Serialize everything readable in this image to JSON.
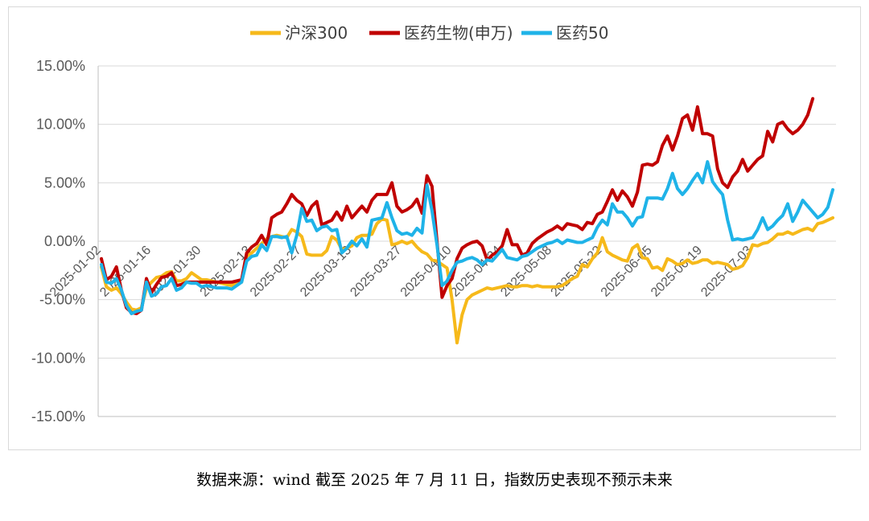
{
  "caption": "数据来源：wind    截至 2025 年 7 月 11 日，指数历史表现不预示未来",
  "chart_data": {
    "type": "line",
    "ylim": [
      -15,
      15
    ],
    "yticks": [
      15,
      10,
      5,
      0,
      -5,
      -10,
      -15
    ],
    "ytick_labels": [
      "15.00%",
      "10.00%",
      "5.00%",
      "0.00%",
      "-5.00%",
      "-10.00%",
      "-15.00%"
    ],
    "xtick_labels": [
      "2025-01-02",
      "2025-01-16",
      "2025-01-30",
      "2025-02-13",
      "2025-02-27",
      "2025-03-13",
      "2025-03-27",
      "2025-04-10",
      "2025-04-24",
      "2025-05-08",
      "2025-05-22",
      "2025-06-05",
      "2025-06-19",
      "2025-07-03"
    ],
    "xtick_index": [
      0,
      10,
      20,
      30,
      40,
      50,
      60,
      70,
      80,
      90,
      100,
      110,
      120,
      130
    ],
    "legend_position": "top",
    "grid": "horizontal",
    "series": [
      {
        "name": "沪深300",
        "color": "#F6B91A",
        "values": [
          -2.2,
          -3.9,
          -4.2,
          -4.0,
          -4.5,
          -5.2,
          -5.8,
          -5.9,
          -5.7,
          -4.0,
          -3.5,
          -3.1,
          -3.0,
          -2.7,
          -2.6,
          -3.4,
          -3.4,
          -3.2,
          -2.7,
          -3.0,
          -3.3,
          -3.3,
          -3.4,
          -3.5,
          -3.6,
          -3.7,
          -3.8,
          -3.6,
          -3.5,
          -1.3,
          -1.0,
          -0.6,
          -0.2,
          0.2,
          0.4,
          0.5,
          0.4,
          0.3,
          1.0,
          0.8,
          0.4,
          -1.1,
          -1.2,
          -1.2,
          -1.2,
          -0.8,
          0.4,
          0.1,
          -0.7,
          -0.6,
          -0.4,
          0.3,
          0.5,
          0.5,
          0.6,
          1.5,
          1.9,
          1.8,
          -0.3,
          -0.2,
          0.0,
          -0.2,
          0.0,
          -0.5,
          -0.9,
          -1.1,
          -1.6,
          -1.7,
          -2.0,
          -2.3,
          -5.0,
          -8.7,
          -6.3,
          -5.0,
          -4.6,
          -4.4,
          -4.2,
          -4.0,
          -4.1,
          -4.0,
          -3.9,
          -3.8,
          -3.9,
          -3.9,
          -3.8,
          -3.8,
          -3.9,
          -3.8,
          -3.9,
          -3.9,
          -3.9,
          -3.9,
          -3.8,
          -3.5,
          -3.2,
          -3.0,
          -2.0,
          -2.2,
          -1.5,
          -1.0,
          0.3,
          -0.9,
          -1.2,
          -1.4,
          -1.6,
          -1.7,
          -0.6,
          -0.3,
          -1.4,
          -1.5,
          -2.3,
          -2.2,
          -2.5,
          -1.5,
          -1.7,
          -2.0,
          -1.9,
          -1.6,
          -1.9,
          -1.8,
          -1.6,
          -1.6,
          -1.9,
          -1.8,
          -1.9,
          -2.0,
          -2.4,
          -2.3,
          -2.1,
          -1.4,
          -0.3,
          -0.4,
          -0.2,
          -0.1,
          0.2,
          0.6,
          0.6,
          0.8,
          0.6,
          0.8,
          1.0,
          1.1,
          0.9,
          1.5,
          1.6,
          1.8,
          2.0
        ]
      },
      {
        "name": "医药生物(申万)",
        "color": "#C00000",
        "values": [
          -1.5,
          -3.3,
          -3.0,
          -2.2,
          -4.2,
          -5.7,
          -6.1,
          -6.2,
          -5.9,
          -3.2,
          -4.4,
          -3.7,
          -3.1,
          -3.0,
          -2.7,
          -3.8,
          -3.7,
          -3.5,
          -3.5,
          -3.5,
          -3.5,
          -3.5,
          -3.5,
          -3.5,
          -3.5,
          -3.5,
          -3.5,
          -3.4,
          -3.3,
          -1.0,
          -0.5,
          -0.2,
          0.5,
          -0.3,
          2.0,
          2.3,
          2.5,
          3.2,
          4.0,
          3.5,
          3.2,
          2.2,
          3.0,
          3.4,
          1.4,
          1.6,
          1.8,
          2.5,
          1.8,
          3.0,
          2.0,
          2.5,
          3.0,
          2.5,
          3.5,
          4.0,
          4.0,
          4.0,
          5.0,
          3.0,
          2.5,
          2.7,
          3.0,
          3.6,
          2.4,
          5.6,
          4.7,
          0.0,
          -4.8,
          -3.8,
          -3.2,
          -1.5,
          -0.6,
          -0.3,
          -0.1,
          0.0,
          -0.4,
          -1.6,
          -1.2,
          -0.9,
          -0.4,
          1.0,
          -0.3,
          -0.3,
          -1.2,
          -1.0,
          -0.2,
          0.2,
          0.5,
          0.8,
          1.0,
          1.3,
          1.0,
          1.5,
          1.4,
          1.3,
          1.0,
          1.6,
          1.5,
          2.3,
          2.5,
          3.4,
          4.4,
          3.5,
          4.3,
          3.8,
          3.0,
          4.2,
          6.5,
          6.6,
          6.5,
          6.8,
          8.2,
          9.0,
          7.8,
          9.0,
          10.5,
          10.8,
          9.5,
          11.5,
          9.2,
          9.2,
          9.0,
          6.2,
          5.0,
          4.6,
          5.5,
          6.0,
          7.0,
          6.0,
          6.5,
          7.0,
          7.3,
          9.4,
          8.5,
          10.0,
          10.2,
          9.6,
          9.2,
          9.5,
          10.0,
          10.8,
          12.2
        ]
      },
      {
        "name": "医药50",
        "color": "#1FB3E8",
        "values": [
          -2.0,
          -3.5,
          -3.6,
          -3.2,
          -4.2,
          -5.5,
          -6.2,
          -6.0,
          -5.9,
          -3.5,
          -4.7,
          -4.5,
          -3.9,
          -3.8,
          -3.2,
          -4.2,
          -4.0,
          -3.5,
          -3.6,
          -3.6,
          -3.9,
          -3.8,
          -3.9,
          -4.0,
          -4.0,
          -4.0,
          -4.1,
          -3.8,
          -3.5,
          -1.7,
          -1.3,
          -1.2,
          -0.3,
          -0.8,
          0.4,
          0.4,
          0.3,
          0.4,
          -1.0,
          0.5,
          2.8,
          1.7,
          1.8,
          0.9,
          1.2,
          1.3,
          0.9,
          1.0,
          -1.0,
          -0.6,
          0.0,
          -0.4,
          0.2,
          -0.5,
          1.8,
          1.9,
          2.0,
          3.3,
          2.0,
          0.9,
          0.6,
          0.7,
          0.5,
          1.1,
          0.7,
          4.8,
          2.6,
          -0.3,
          -3.8,
          -3.4,
          -2.5,
          -1.8,
          -1.7,
          -1.5,
          -1.4,
          -1.6,
          -2.0,
          -1.6,
          -1.7,
          -1.2,
          -0.7,
          -1.4,
          -1.5,
          -1.6,
          -1.3,
          -1.2,
          -0.9,
          -0.6,
          -0.4,
          -0.2,
          -0.1,
          0.1,
          -0.2,
          0.1,
          0.0,
          -0.1,
          -0.1,
          0.1,
          0.3,
          1.2,
          1.8,
          1.4,
          3.2,
          2.5,
          2.5,
          2.0,
          1.3,
          2.0,
          2.1,
          3.7,
          3.7,
          3.7,
          3.6,
          4.5,
          5.8,
          4.5,
          4.0,
          4.5,
          5.2,
          5.8,
          5.0,
          6.8,
          5.1,
          4.5,
          4.0,
          1.8,
          0.1,
          0.2,
          0.1,
          0.2,
          0.3,
          1.0,
          2.0,
          1.0,
          1.3,
          1.8,
          2.2,
          3.2,
          1.7,
          2.5,
          3.5,
          3.0,
          2.5,
          2.0,
          2.3,
          2.9,
          4.4
        ]
      }
    ]
  }
}
